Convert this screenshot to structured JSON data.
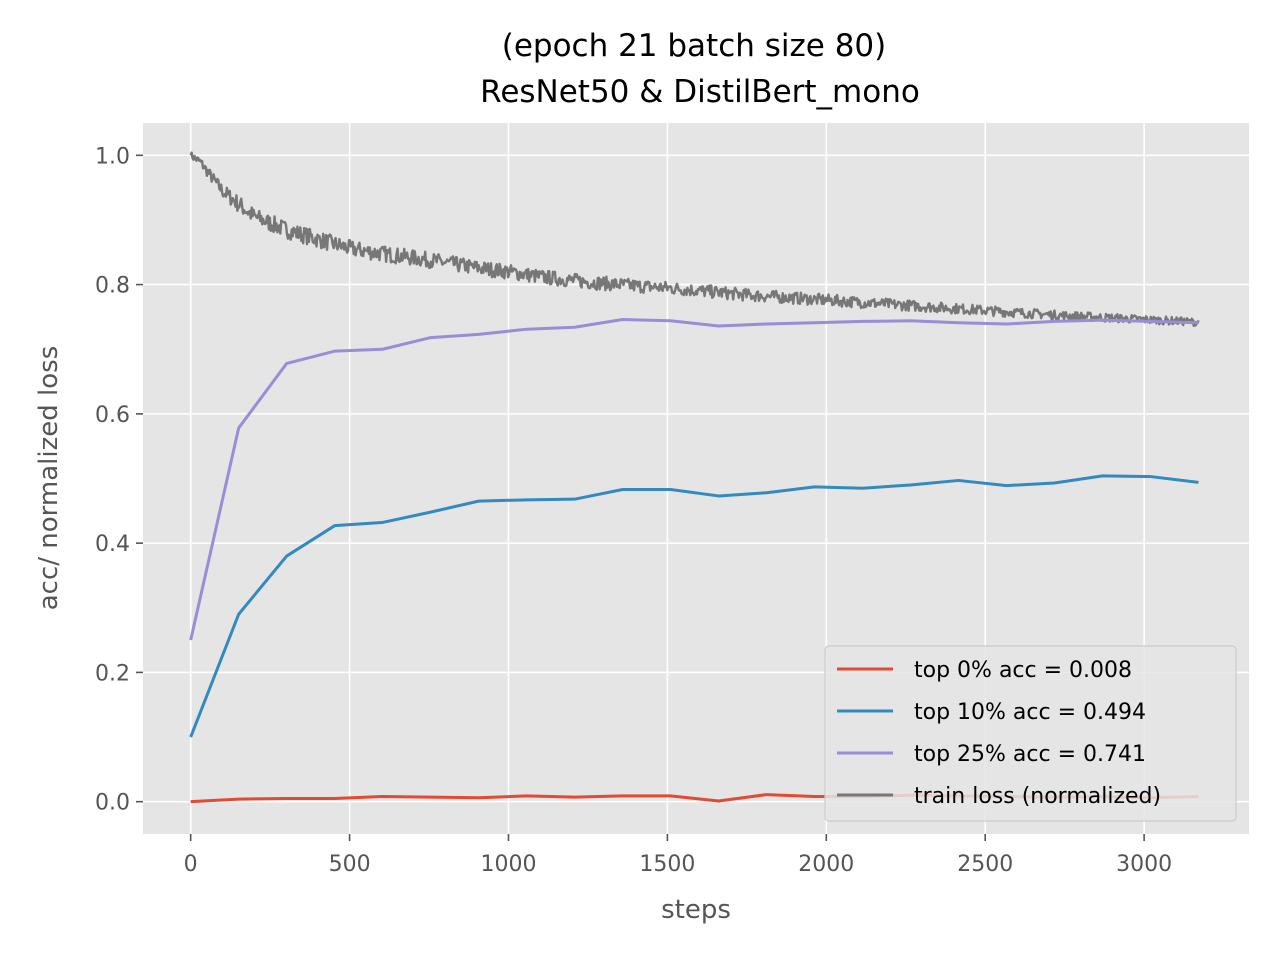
{
  "chart_data": {
    "type": "line",
    "title": [
      "(epoch 21 batch size 80)",
      "ResNet50 & DistilBert_mono"
    ],
    "xlabel": "steps",
    "ylabel": "acc/ normalized loss",
    "xlim": [
      -150,
      3330
    ],
    "ylim": [
      -0.05,
      1.05
    ],
    "xticks": [
      0,
      500,
      1000,
      1500,
      2000,
      2500,
      3000
    ],
    "xtick_labels": [
      "0",
      "500",
      "1000",
      "1500",
      "2000",
      "2500",
      "3000"
    ],
    "yticks": [
      0.0,
      0.2,
      0.4,
      0.6,
      0.8,
      1.0
    ],
    "ytick_labels": [
      "0.0",
      "0.2",
      "0.4",
      "0.6",
      "0.8",
      "1.0"
    ],
    "grid": true,
    "legend_position": "lower-right",
    "series": [
      {
        "name": "top 0% acc = 0.008",
        "color": "#E24A33",
        "x": [
          0,
          151,
          302,
          453,
          604,
          755,
          906,
          1057,
          1208,
          1359,
          1510,
          1661,
          1812,
          1963,
          2114,
          2265,
          2416,
          2567,
          2718,
          2869,
          3020,
          3171
        ],
        "y": [
          0.0,
          0.004,
          0.005,
          0.005,
          0.008,
          0.007,
          0.006,
          0.009,
          0.007,
          0.009,
          0.009,
          0.001,
          0.011,
          0.008,
          0.008,
          0.01,
          0.009,
          0.008,
          0.007,
          0.008,
          0.006,
          0.008
        ]
      },
      {
        "name": "top 10% acc = 0.494",
        "color": "#348ABD",
        "x": [
          0,
          151,
          302,
          453,
          604,
          755,
          906,
          1057,
          1208,
          1359,
          1510,
          1661,
          1812,
          1963,
          2114,
          2265,
          2416,
          2567,
          2718,
          2869,
          3020,
          3171
        ],
        "y": [
          0.1,
          0.29,
          0.38,
          0.427,
          0.432,
          0.448,
          0.465,
          0.467,
          0.468,
          0.483,
          0.483,
          0.473,
          0.478,
          0.487,
          0.485,
          0.49,
          0.497,
          0.489,
          0.493,
          0.504,
          0.503,
          0.494
        ]
      },
      {
        "name": "top 25% acc = 0.741",
        "color": "#988ED5",
        "x": [
          0,
          151,
          302,
          453,
          604,
          755,
          906,
          1057,
          1208,
          1359,
          1510,
          1661,
          1812,
          1963,
          2114,
          2265,
          2416,
          2567,
          2718,
          2869,
          3020,
          3171
        ],
        "y": [
          0.25,
          0.578,
          0.678,
          0.697,
          0.7,
          0.718,
          0.723,
          0.731,
          0.734,
          0.746,
          0.744,
          0.736,
          0.739,
          0.741,
          0.743,
          0.744,
          0.741,
          0.739,
          0.743,
          0.745,
          0.743,
          0.741
        ]
      },
      {
        "name": "train loss (normalized)",
        "color": "#777777",
        "noisy": true,
        "x": [
          0,
          30,
          60,
          100,
          150,
          200,
          250,
          300,
          400,
          500,
          600,
          750,
          900,
          1000,
          1100,
          1250,
          1400,
          1500,
          1750,
          2000,
          2250,
          2500,
          2750,
          3000,
          3171
        ],
        "y": [
          1.0,
          0.99,
          0.97,
          0.945,
          0.925,
          0.905,
          0.895,
          0.885,
          0.87,
          0.856,
          0.848,
          0.838,
          0.826,
          0.82,
          0.812,
          0.804,
          0.798,
          0.795,
          0.784,
          0.776,
          0.768,
          0.76,
          0.752,
          0.746,
          0.742
        ]
      }
    ]
  }
}
